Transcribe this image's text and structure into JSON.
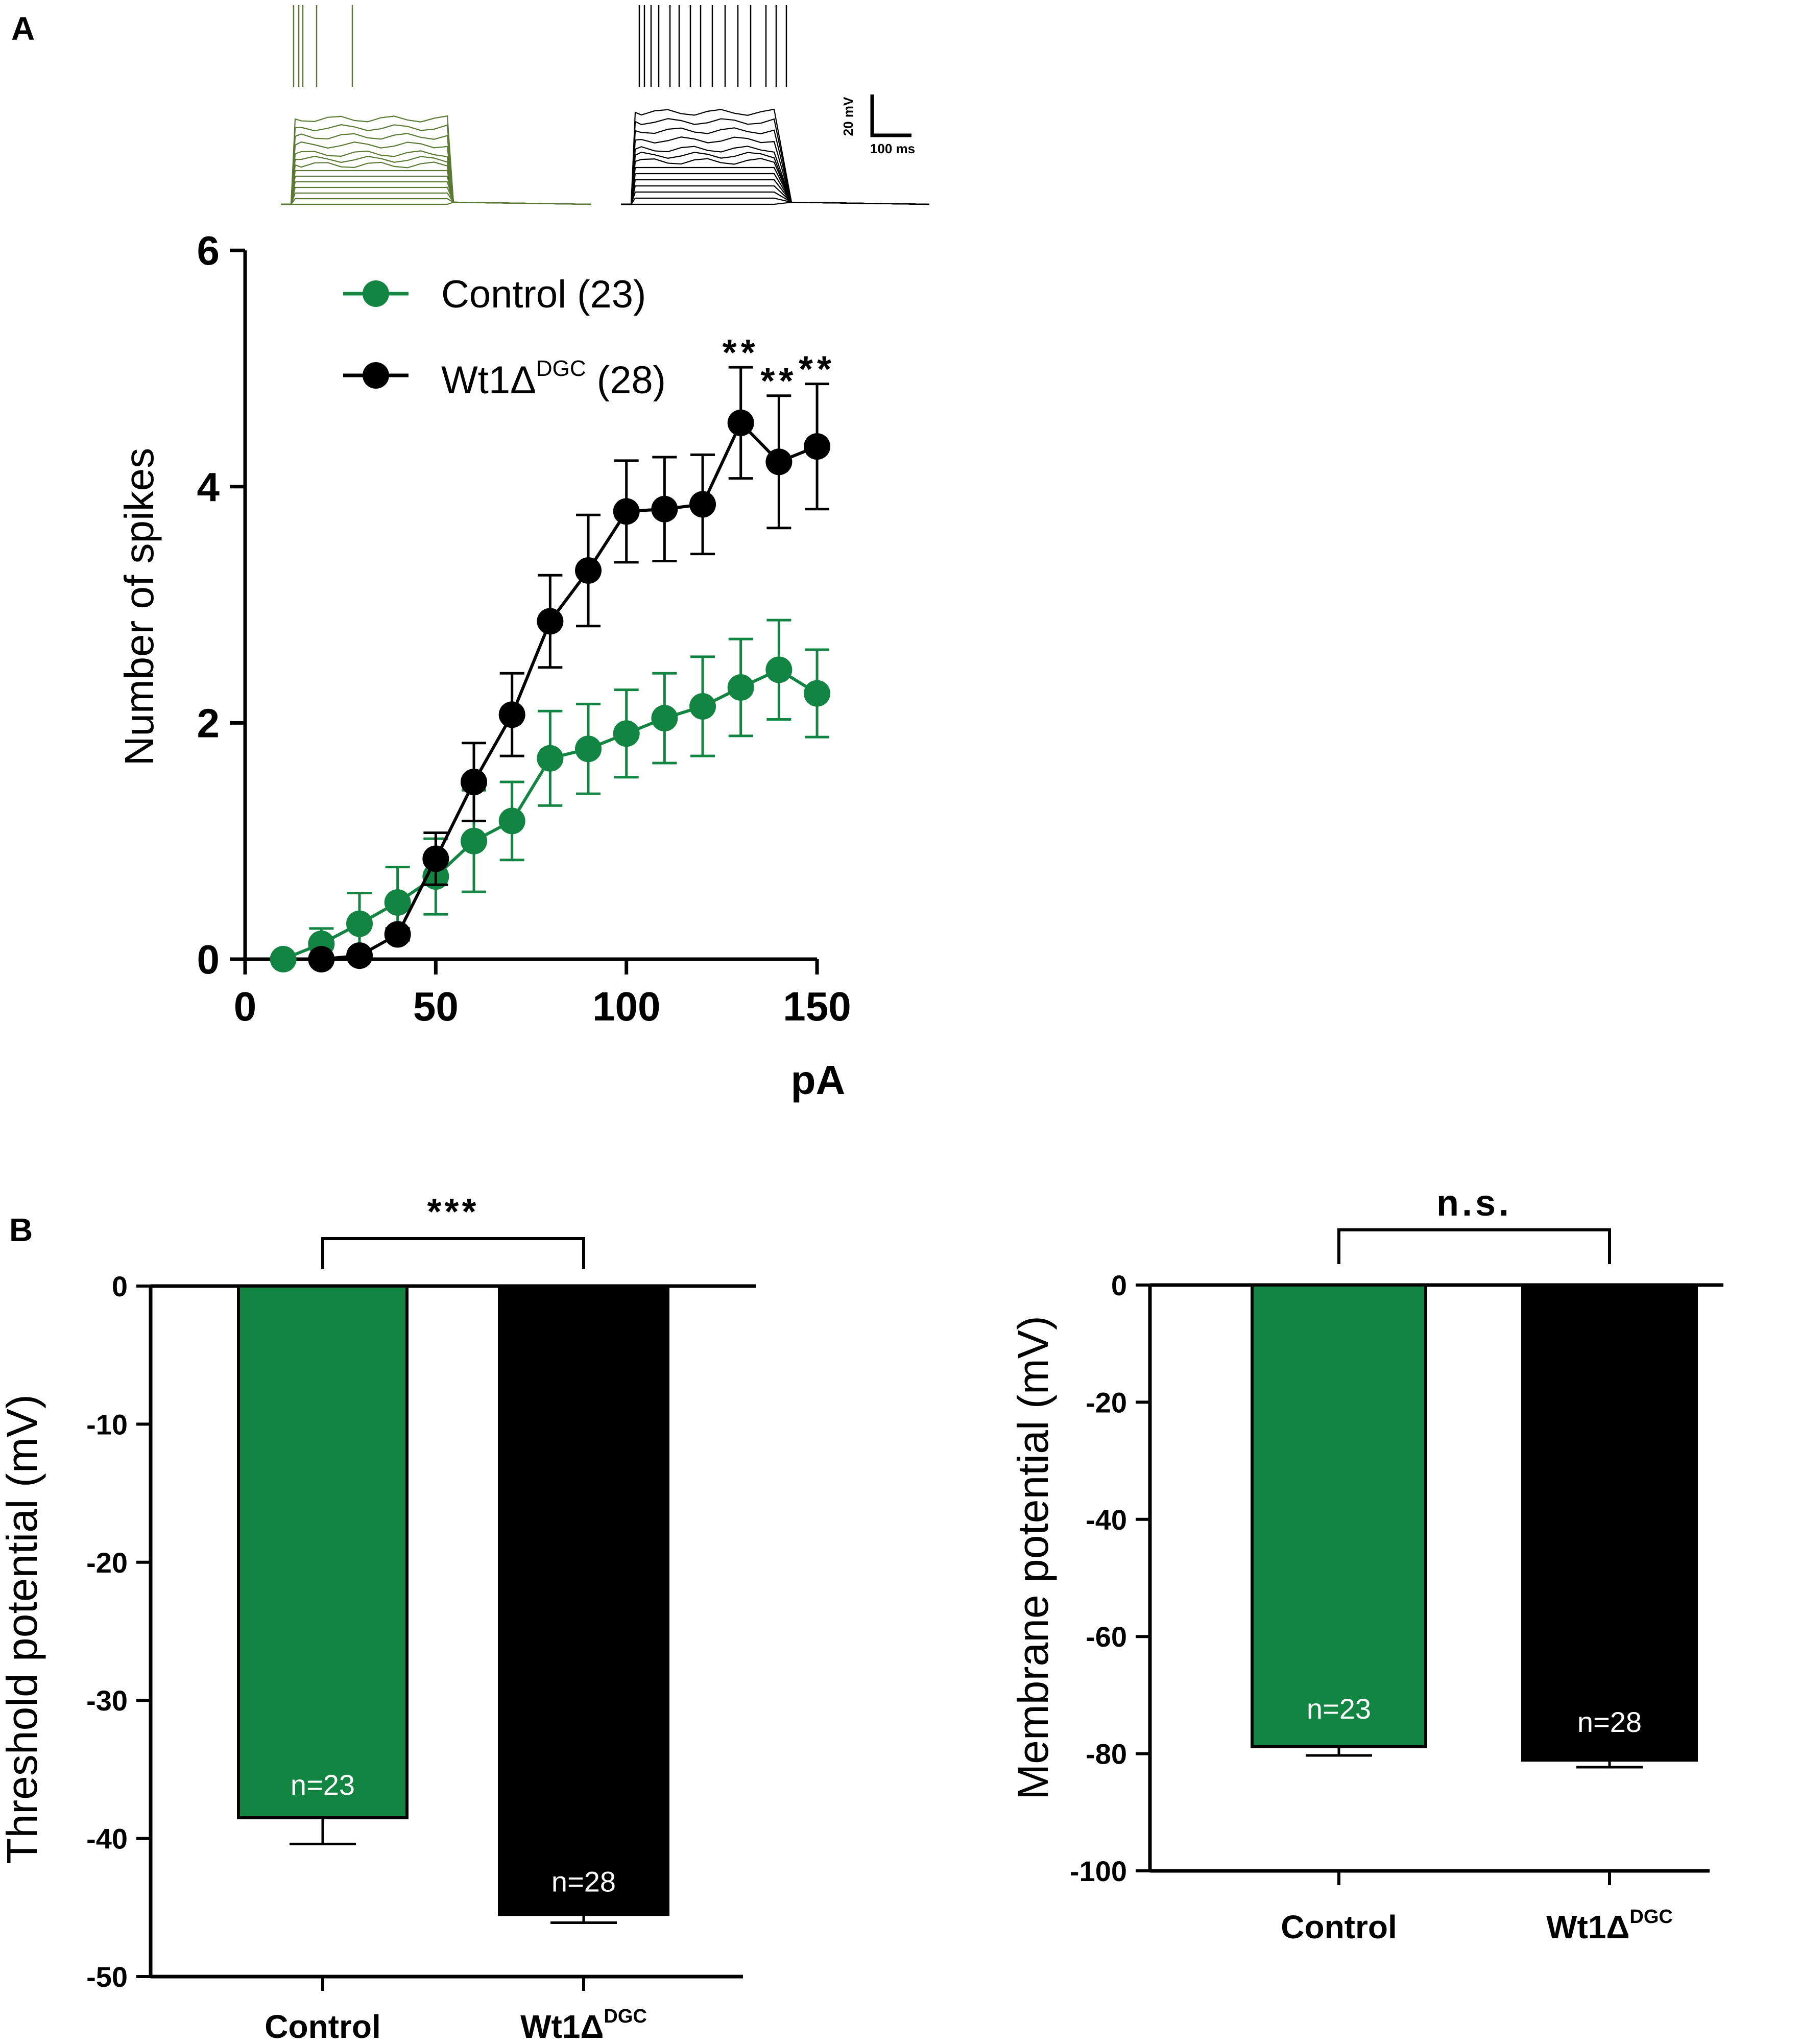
{
  "panels": {
    "a": "A",
    "b": "B"
  },
  "traces": {
    "control_color": "#5a7a34",
    "mutant_color": "#000000",
    "scale_v": "20 mV",
    "scale_t": "100 ms"
  },
  "colors": {
    "control": "#138542",
    "mutant": "#000000"
  },
  "chart_data": [
    {
      "type": "line",
      "title": "",
      "xlabel": "pA",
      "ylabel": "Number of spikes",
      "xlim": [
        0,
        150
      ],
      "ylim": [
        0,
        6
      ],
      "xticks": [
        0,
        50,
        100,
        150
      ],
      "yticks": [
        0,
        2,
        4,
        6
      ],
      "legend_position": "top-left",
      "series": [
        {
          "name": "Control (23)",
          "legend_main": "Control (23)",
          "color": "#138542",
          "x": [
            10,
            20,
            30,
            40,
            50,
            60,
            70,
            80,
            90,
            100,
            110,
            120,
            130,
            140,
            150
          ],
          "y": [
            0.0,
            0.13,
            0.3,
            0.48,
            0.7,
            1.0,
            1.17,
            1.7,
            1.78,
            1.91,
            2.04,
            2.14,
            2.3,
            2.45,
            2.25
          ],
          "err": [
            0.0,
            0.13,
            0.26,
            0.3,
            0.32,
            0.43,
            0.33,
            0.4,
            0.38,
            0.37,
            0.38,
            0.42,
            0.41,
            0.42,
            0.37
          ]
        },
        {
          "name": "Wt1ΔDGC (28)",
          "legend_main": "Wt1Δ",
          "legend_sup": "DGC",
          "legend_tail": " (28)",
          "color": "#000000",
          "x": [
            20,
            30,
            40,
            50,
            60,
            70,
            80,
            90,
            100,
            110,
            120,
            130,
            140,
            150
          ],
          "y": [
            0.0,
            0.03,
            0.21,
            0.85,
            1.5,
            2.07,
            2.86,
            3.29,
            3.79,
            3.81,
            3.85,
            4.54,
            4.21,
            4.34
          ],
          "err": [
            0.0,
            0.02,
            0.05,
            0.22,
            0.33,
            0.35,
            0.39,
            0.47,
            0.43,
            0.44,
            0.42,
            0.47,
            0.56,
            0.53
          ]
        }
      ],
      "annotations": [
        {
          "x": 130,
          "text": "**"
        },
        {
          "x": 140,
          "text": "**"
        },
        {
          "x": 150,
          "text": "**"
        }
      ]
    },
    {
      "type": "bar",
      "ylabel": "Threshold potential (mV)",
      "ylim": [
        -50,
        0
      ],
      "yticks": [
        0,
        -10,
        -20,
        -30,
        -40,
        -50
      ],
      "categories": [
        "Control",
        "Wt1ΔDGC"
      ],
      "category_labels": [
        {
          "main": "Control",
          "sup": ""
        },
        {
          "main": "Wt1Δ",
          "sup": "DGC"
        }
      ],
      "values": [
        -38.5,
        -45.5
      ],
      "errors": [
        1.9,
        0.6
      ],
      "n_labels": [
        "n=23",
        "n=28"
      ],
      "colors": [
        "#138542",
        "#000000"
      ],
      "significance": "***"
    },
    {
      "type": "bar",
      "ylabel": "Membrane potential (mV)",
      "ylim": [
        -100,
        0
      ],
      "yticks": [
        0,
        -20,
        -40,
        -60,
        -80,
        -100
      ],
      "categories": [
        "Control",
        "Wt1ΔDGC"
      ],
      "category_labels": [
        {
          "main": "Control",
          "sup": ""
        },
        {
          "main": "Wt1Δ",
          "sup": "DGC"
        }
      ],
      "values": [
        -78.8,
        -81.1
      ],
      "errors": [
        1.5,
        1.2
      ],
      "n_labels": [
        "n=23",
        "n=28"
      ],
      "colors": [
        "#138542",
        "#000000"
      ],
      "significance": "n.s."
    }
  ]
}
